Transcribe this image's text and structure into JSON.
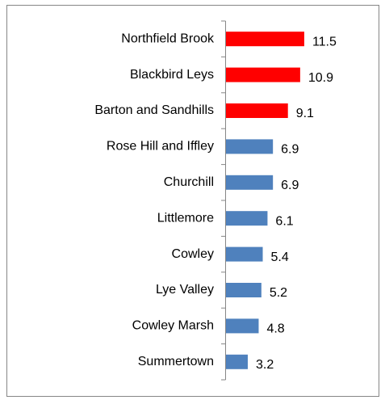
{
  "chart_data": {
    "type": "bar",
    "orientation": "horizontal",
    "categories": [
      "Northfield Brook",
      "Blackbird Leys",
      "Barton and Sandhills",
      "Rose Hill and Iffley",
      "Churchill",
      "Littlemore",
      "Cowley",
      "Lye Valley",
      "Cowley Marsh",
      "Summertown"
    ],
    "values": [
      11.5,
      10.9,
      9.1,
      6.9,
      6.9,
      6.1,
      5.4,
      5.2,
      4.8,
      3.2
    ],
    "colors": [
      "#ff0000",
      "#ff0000",
      "#ff0000",
      "#4f81bd",
      "#4f81bd",
      "#4f81bd",
      "#4f81bd",
      "#4f81bd",
      "#4f81bd",
      "#4f81bd"
    ]
  }
}
